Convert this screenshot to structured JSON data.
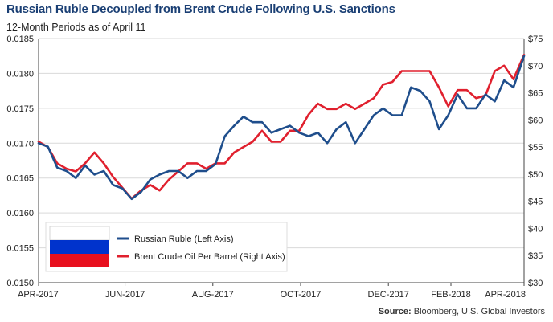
{
  "chart_data": {
    "type": "line",
    "title": "Russian Ruble Decoupled from Brent Crude Following U.S. Sanctions",
    "subtitle": "12-Month Periods as of April 11",
    "source_label": "Source:",
    "source_text": "Bloomberg, U.S. Global Investors",
    "x_domain": [
      "2017-04-11",
      "2018-04-11"
    ],
    "x_ticks": [
      {
        "date": "2017-04-11",
        "label": "APR-2017"
      },
      {
        "date": "2017-06-15",
        "label": "JUN-2017"
      },
      {
        "date": "2017-08-20",
        "label": "AUG-2017"
      },
      {
        "date": "2017-10-25",
        "label": "OCT-2017"
      },
      {
        "date": "2017-12-30",
        "label": "DEC-2017"
      },
      {
        "date": "2018-02-15",
        "label": "FEB-2018"
      },
      {
        "date": "2018-04-11",
        "label": "APR-2018"
      }
    ],
    "y_left": {
      "min": 0.015,
      "max": 0.0185,
      "ticks": [
        "0.0150",
        "0.0155",
        "0.0160",
        "0.0165",
        "0.0170",
        "0.0175",
        "0.0180",
        "0.0185"
      ]
    },
    "y_right": {
      "min": 30,
      "max": 75,
      "ticks": [
        "$30",
        "$35",
        "$40",
        "$45",
        "$50",
        "$55",
        "$60",
        "$65",
        "$70",
        "$75"
      ]
    },
    "grid": "horizontal",
    "legend_placement": "bottom-left",
    "colors": {
      "ruble": "#1f4e8c",
      "brent": "#e0202e",
      "title": "#1a3f74"
    },
    "series": [
      {
        "name": "Russian Ruble (Left Axis)",
        "axis": "left",
        "points": [
          [
            "2017-04-11",
            0.017
          ],
          [
            "2017-04-18",
            0.01695
          ],
          [
            "2017-04-25",
            0.01665
          ],
          [
            "2017-05-02",
            0.0166
          ],
          [
            "2017-05-09",
            0.0165
          ],
          [
            "2017-05-16",
            0.01668
          ],
          [
            "2017-05-23",
            0.01655
          ],
          [
            "2017-05-30",
            0.0166
          ],
          [
            "2017-06-06",
            0.0164
          ],
          [
            "2017-06-13",
            0.01635
          ],
          [
            "2017-06-20",
            0.0162
          ],
          [
            "2017-06-27",
            0.0163
          ],
          [
            "2017-07-04",
            0.01648
          ],
          [
            "2017-07-11",
            0.01655
          ],
          [
            "2017-07-18",
            0.0166
          ],
          [
            "2017-07-25",
            0.0166
          ],
          [
            "2017-08-01",
            0.0165
          ],
          [
            "2017-08-08",
            0.0166
          ],
          [
            "2017-08-15",
            0.0166
          ],
          [
            "2017-08-22",
            0.0167
          ],
          [
            "2017-08-29",
            0.0171
          ],
          [
            "2017-09-05",
            0.01725
          ],
          [
            "2017-09-12",
            0.01738
          ],
          [
            "2017-09-19",
            0.0173
          ],
          [
            "2017-09-26",
            0.0173
          ],
          [
            "2017-10-03",
            0.01715
          ],
          [
            "2017-10-10",
            0.0172
          ],
          [
            "2017-10-17",
            0.01725
          ],
          [
            "2017-10-24",
            0.01715
          ],
          [
            "2017-10-31",
            0.0171
          ],
          [
            "2017-11-07",
            0.01715
          ],
          [
            "2017-11-14",
            0.017
          ],
          [
            "2017-11-21",
            0.0172
          ],
          [
            "2017-11-28",
            0.0173
          ],
          [
            "2017-12-05",
            0.017
          ],
          [
            "2017-12-12",
            0.0172
          ],
          [
            "2017-12-19",
            0.0174
          ],
          [
            "2017-12-26",
            0.0175
          ],
          [
            "2018-01-02",
            0.0174
          ],
          [
            "2018-01-09",
            0.0174
          ],
          [
            "2018-01-16",
            0.0178
          ],
          [
            "2018-01-23",
            0.01775
          ],
          [
            "2018-01-30",
            0.0176
          ],
          [
            "2018-02-06",
            0.0172
          ],
          [
            "2018-02-13",
            0.0174
          ],
          [
            "2018-02-20",
            0.0177
          ],
          [
            "2018-02-27",
            0.0175
          ],
          [
            "2018-03-06",
            0.0175
          ],
          [
            "2018-03-13",
            0.0177
          ],
          [
            "2018-03-20",
            0.0176
          ],
          [
            "2018-03-27",
            0.0179
          ],
          [
            "2018-04-03",
            0.0178
          ],
          [
            "2018-04-11",
            0.01825
          ]
        ]
      },
      {
        "name": "Brent Crude Oil Per Barrel (Right Axis)",
        "axis": "right",
        "points": [
          [
            "2017-04-11",
            56
          ],
          [
            "2017-04-18",
            55
          ],
          [
            "2017-04-25",
            52
          ],
          [
            "2017-05-02",
            51
          ],
          [
            "2017-05-09",
            50.5
          ],
          [
            "2017-05-16",
            52
          ],
          [
            "2017-05-23",
            54
          ],
          [
            "2017-05-30",
            52
          ],
          [
            "2017-06-06",
            49.5
          ],
          [
            "2017-06-13",
            47.5
          ],
          [
            "2017-06-20",
            45.5
          ],
          [
            "2017-06-27",
            47
          ],
          [
            "2017-07-04",
            48
          ],
          [
            "2017-07-11",
            47
          ],
          [
            "2017-07-18",
            49
          ],
          [
            "2017-07-25",
            50.5
          ],
          [
            "2017-08-01",
            52
          ],
          [
            "2017-08-08",
            52
          ],
          [
            "2017-08-15",
            51
          ],
          [
            "2017-08-22",
            52
          ],
          [
            "2017-08-29",
            52
          ],
          [
            "2017-09-05",
            54
          ],
          [
            "2017-09-12",
            55
          ],
          [
            "2017-09-19",
            56
          ],
          [
            "2017-09-26",
            58
          ],
          [
            "2017-10-03",
            56
          ],
          [
            "2017-10-10",
            56
          ],
          [
            "2017-10-17",
            58
          ],
          [
            "2017-10-24",
            58
          ],
          [
            "2017-10-31",
            61
          ],
          [
            "2017-11-07",
            63
          ],
          [
            "2017-11-14",
            62
          ],
          [
            "2017-11-21",
            62
          ],
          [
            "2017-11-28",
            63
          ],
          [
            "2017-12-05",
            62
          ],
          [
            "2017-12-12",
            63
          ],
          [
            "2017-12-19",
            64
          ],
          [
            "2017-12-26",
            66.5
          ],
          [
            "2018-01-02",
            67
          ],
          [
            "2018-01-09",
            69
          ],
          [
            "2018-01-16",
            69
          ],
          [
            "2018-01-23",
            69
          ],
          [
            "2018-01-30",
            69
          ],
          [
            "2018-02-06",
            66
          ],
          [
            "2018-02-13",
            62.5
          ],
          [
            "2018-02-20",
            65.5
          ],
          [
            "2018-02-27",
            65.5
          ],
          [
            "2018-03-06",
            64
          ],
          [
            "2018-03-13",
            64.5
          ],
          [
            "2018-03-20",
            69
          ],
          [
            "2018-03-27",
            70
          ],
          [
            "2018-04-03",
            67.5
          ],
          [
            "2018-04-11",
            72
          ]
        ]
      }
    ],
    "legend_flag": "Russian flag"
  }
}
